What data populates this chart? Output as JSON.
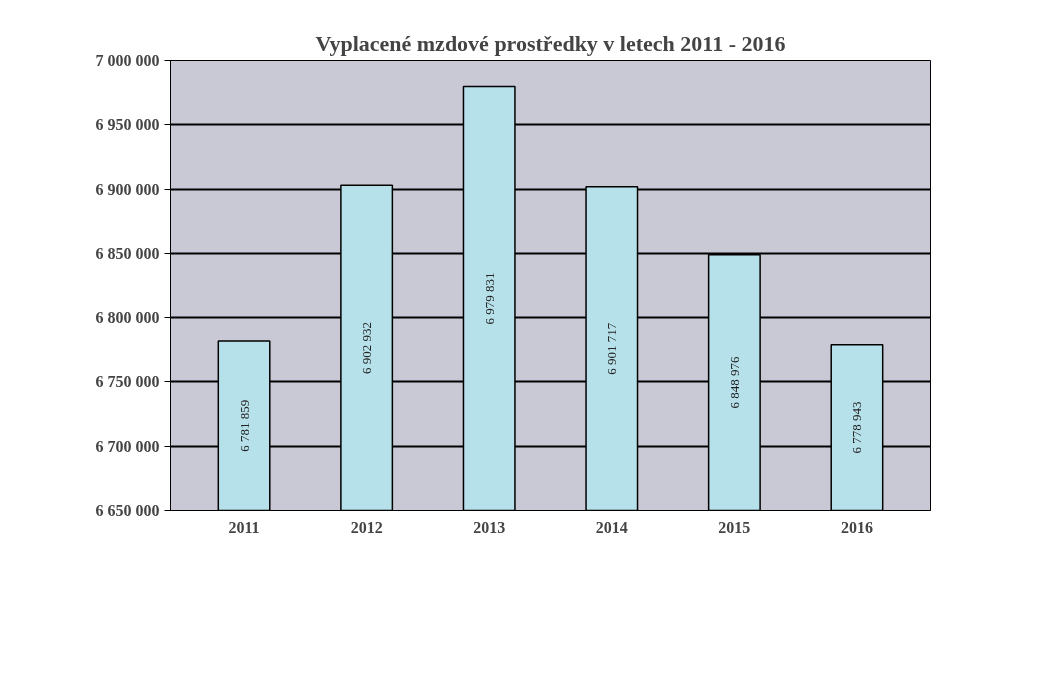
{
  "chart_data": {
    "type": "bar",
    "title": "Vyplacené mzdové prostředky v letech 2011 - 2016",
    "categories": [
      "2011",
      "2012",
      "2013",
      "2014",
      "2015",
      "2016"
    ],
    "values": [
      6781859,
      6902932,
      6979831,
      6901717,
      6848976,
      6778943
    ],
    "value_labels": [
      "6 781 859",
      "6 902 932",
      "6 979 831",
      "6 901 717",
      "6 848 976",
      "6 778 943"
    ],
    "color": "#b7e1ea",
    "ylim": [
      6650000,
      7000000
    ],
    "yticks": [
      {
        "value": 6650000,
        "label": "6 650 000"
      },
      {
        "value": 6700000,
        "label": "6 700 000"
      },
      {
        "value": 6750000,
        "label": "6 750 000"
      },
      {
        "value": 6800000,
        "label": "6 800 000"
      },
      {
        "value": 6850000,
        "label": "6 850 000"
      },
      {
        "value": 6900000,
        "label": "6 900 000"
      },
      {
        "value": 6950000,
        "label": "6 950 000"
      },
      {
        "value": 7000000,
        "label": "7 000 000"
      }
    ],
    "grid": "y"
  }
}
